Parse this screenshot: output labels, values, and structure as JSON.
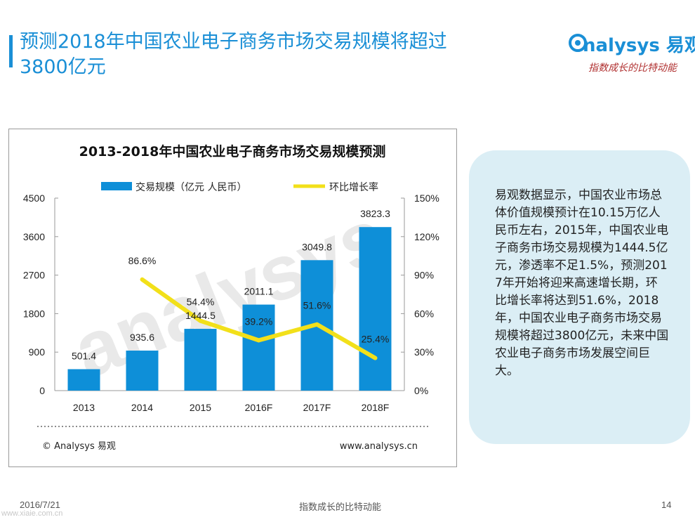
{
  "page": {
    "title": "预测2018年中国农业电子商务市场交易规模将超过3800亿元",
    "logo_word": "nalysys 易观",
    "logo_tagline": "指数成长的比特动能",
    "footer_date": "2016/7/21",
    "footer_slogan": "指数成长的比特动能",
    "page_number": "14",
    "site_watermark": "www.xiaie.com.cn"
  },
  "callout": {
    "text": "易观数据显示，中国农业市场总体价值规模预计在10.15万亿人民币左右，2015年，中国农业电子商务市场交易规模为1444.5亿元，渗透率不足1.5%，预测2017年开始将迎来高速增长期，环比增长率将达到51.6%，2018年，中国农业电子商务市场交易规模将超过3800亿元，未来中国农业电子商务市场发展空间巨大。"
  },
  "chart_footer": {
    "copyright": "© Analysys 易观",
    "url": "www.analysys.cn"
  },
  "colors": {
    "accent": "#1a8fd6",
    "bar": "#0e8fd8",
    "line": "#f2e01a",
    "callout_bg": "#dbeef5",
    "tagline": "#b03030"
  },
  "chart_data": {
    "type": "bar",
    "title": "2013-2018年中国农业电子商务市场交易规模预测",
    "categories": [
      "2013",
      "2014",
      "2015",
      "2016F",
      "2017F",
      "2018F"
    ],
    "series": [
      {
        "name": "交易规模（亿元 人民币）",
        "type": "bar",
        "axis": "left",
        "values": [
          501.4,
          935.6,
          1444.5,
          2011.1,
          3049.8,
          3823.3
        ],
        "labels": [
          "501.4",
          "935.6",
          "1444.5",
          "2011.1",
          "3049.8",
          "3823.3"
        ]
      },
      {
        "name": "环比增长率",
        "type": "line",
        "axis": "right",
        "values": [
          null,
          86.6,
          54.4,
          39.2,
          51.6,
          25.4
        ],
        "labels": [
          "",
          "86.6%",
          "54.4%",
          "39.2%",
          "51.6%",
          "25.4%"
        ]
      }
    ],
    "ylim": [
      0,
      4500
    ],
    "yticks": [
      "0",
      "900",
      "1800",
      "2700",
      "3600",
      "4500"
    ],
    "y2lim": [
      0,
      150
    ],
    "y2ticks": [
      "0%",
      "30%",
      "60%",
      "90%",
      "120%",
      "150%"
    ],
    "legend_position": "top",
    "grid": false
  }
}
